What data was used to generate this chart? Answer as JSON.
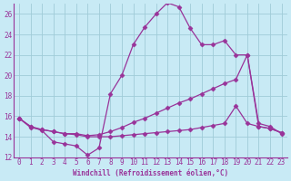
{
  "xlabel": "Windchill (Refroidissement éolien,°C)",
  "bg_color": "#c8eaf5",
  "grid_color": "#a0ccd8",
  "line_color": "#993399",
  "xlim": [
    -0.5,
    23.5
  ],
  "ylim": [
    12,
    27
  ],
  "yticks": [
    12,
    14,
    16,
    18,
    20,
    22,
    24,
    26
  ],
  "xticks": [
    0,
    1,
    2,
    3,
    4,
    5,
    6,
    7,
    8,
    9,
    10,
    11,
    12,
    13,
    14,
    15,
    16,
    17,
    18,
    19,
    20,
    21,
    22,
    23
  ],
  "line1_x": [
    0,
    1,
    2,
    3,
    4,
    5,
    6,
    7,
    8,
    9,
    10,
    11,
    12,
    13,
    14,
    15,
    16,
    17,
    18,
    19,
    20,
    21,
    22,
    23
  ],
  "line1_y": [
    15.8,
    15.0,
    14.6,
    13.5,
    13.3,
    13.1,
    12.2,
    12.9,
    18.2,
    20.0,
    23.0,
    24.7,
    26.0,
    27.1,
    26.7,
    24.6,
    23.0,
    23.0,
    23.4,
    22.0,
    22.0,
    15.3,
    15.0,
    14.3
  ],
  "line2_x": [
    0,
    1,
    2,
    3,
    4,
    5,
    6,
    7,
    8,
    9,
    10,
    11,
    12,
    13,
    14,
    15,
    16,
    17,
    18,
    19,
    20,
    21,
    22,
    23
  ],
  "line2_y": [
    15.8,
    15.0,
    14.7,
    14.5,
    14.3,
    14.3,
    14.1,
    14.2,
    14.5,
    14.9,
    15.4,
    15.8,
    16.3,
    16.8,
    17.3,
    17.7,
    18.2,
    18.7,
    19.2,
    19.6,
    22.0,
    15.0,
    14.8,
    14.4
  ],
  "line3_x": [
    0,
    1,
    2,
    3,
    4,
    5,
    6,
    7,
    8,
    9,
    10,
    11,
    12,
    13,
    14,
    15,
    16,
    17,
    18,
    19,
    20,
    21,
    22,
    23
  ],
  "line3_y": [
    15.8,
    14.9,
    14.7,
    14.5,
    14.3,
    14.2,
    14.0,
    14.0,
    14.0,
    14.1,
    14.2,
    14.3,
    14.4,
    14.5,
    14.6,
    14.7,
    14.9,
    15.1,
    15.3,
    17.0,
    15.3,
    15.0,
    14.8,
    14.4
  ],
  "xlabel_fontsize": 5.5,
  "tick_fontsize": 5.5,
  "line_width": 0.9,
  "marker_size": 2.5
}
